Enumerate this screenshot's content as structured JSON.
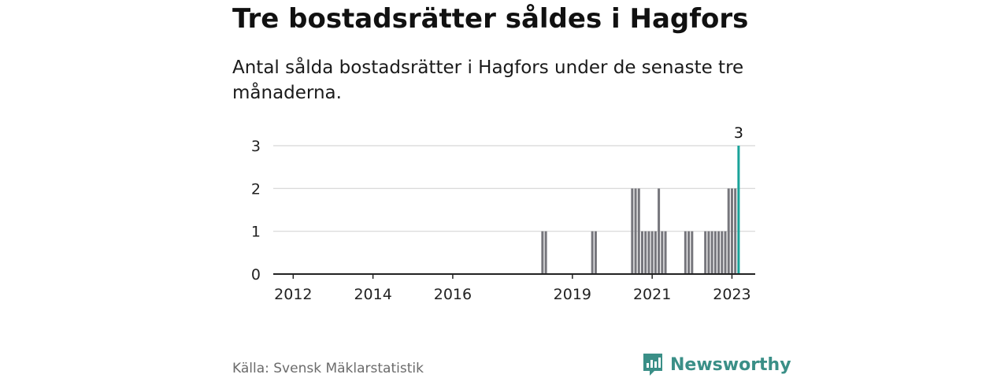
{
  "header": {
    "title": "Tre bostadsrätter såldes i Hagfors",
    "subtitle": "Antal sålda bostadsrätter i Hagfors under de senaste tre månaderna."
  },
  "footer": {
    "source": "Källa: Svensk Mäklarstatistik",
    "brand": "Newsworthy"
  },
  "colors": {
    "bar": "#76767c",
    "highlight": "#1aa39a",
    "grid": "#d6d6d6",
    "axis": "#222222",
    "brand": "#3a8f87"
  },
  "chart_data": {
    "type": "bar",
    "title": "Tre bostadsrätter såldes i Hagfors",
    "subtitle": "Antal sålda bostadsrätter i Hagfors under de senaste tre månaderna.",
    "xlabel": "",
    "ylabel": "",
    "xlim": [
      "2011-07",
      "2023-08"
    ],
    "ylim": [
      0,
      3
    ],
    "yticks": [
      0,
      1,
      2,
      3
    ],
    "xticks": [
      {
        "date": "2012-01",
        "label": "2012"
      },
      {
        "date": "2014-01",
        "label": "2014"
      },
      {
        "date": "2016-01",
        "label": "2016"
      },
      {
        "date": "2019-01",
        "label": "2019"
      },
      {
        "date": "2021-01",
        "label": "2021"
      },
      {
        "date": "2023-01",
        "label": "2023"
      }
    ],
    "grid": true,
    "legend": "none",
    "series": [
      {
        "values": [
          {
            "month": "2018-04",
            "value": 1
          },
          {
            "month": "2018-05",
            "value": 1
          },
          {
            "month": "2019-07",
            "value": 1
          },
          {
            "month": "2019-08",
            "value": 1
          },
          {
            "month": "2020-07",
            "value": 2
          },
          {
            "month": "2020-08",
            "value": 2
          },
          {
            "month": "2020-09",
            "value": 2
          },
          {
            "month": "2020-10",
            "value": 1
          },
          {
            "month": "2020-11",
            "value": 1
          },
          {
            "month": "2020-12",
            "value": 1
          },
          {
            "month": "2021-01",
            "value": 1
          },
          {
            "month": "2021-02",
            "value": 1
          },
          {
            "month": "2021-03",
            "value": 2
          },
          {
            "month": "2021-04",
            "value": 1
          },
          {
            "month": "2021-05",
            "value": 1
          },
          {
            "month": "2021-11",
            "value": 1
          },
          {
            "month": "2021-12",
            "value": 1
          },
          {
            "month": "2022-01",
            "value": 1
          },
          {
            "month": "2022-05",
            "value": 1
          },
          {
            "month": "2022-06",
            "value": 1
          },
          {
            "month": "2022-07",
            "value": 1
          },
          {
            "month": "2022-08",
            "value": 1
          },
          {
            "month": "2022-09",
            "value": 1
          },
          {
            "month": "2022-10",
            "value": 1
          },
          {
            "month": "2022-11",
            "value": 1
          },
          {
            "month": "2022-12",
            "value": 2
          },
          {
            "month": "2023-01",
            "value": 2
          },
          {
            "month": "2023-02",
            "value": 2
          },
          {
            "month": "2023-03",
            "value": 3,
            "highlight": true
          }
        ]
      }
    ],
    "annotations": [
      {
        "month": "2023-03",
        "text": "3"
      }
    ]
  }
}
